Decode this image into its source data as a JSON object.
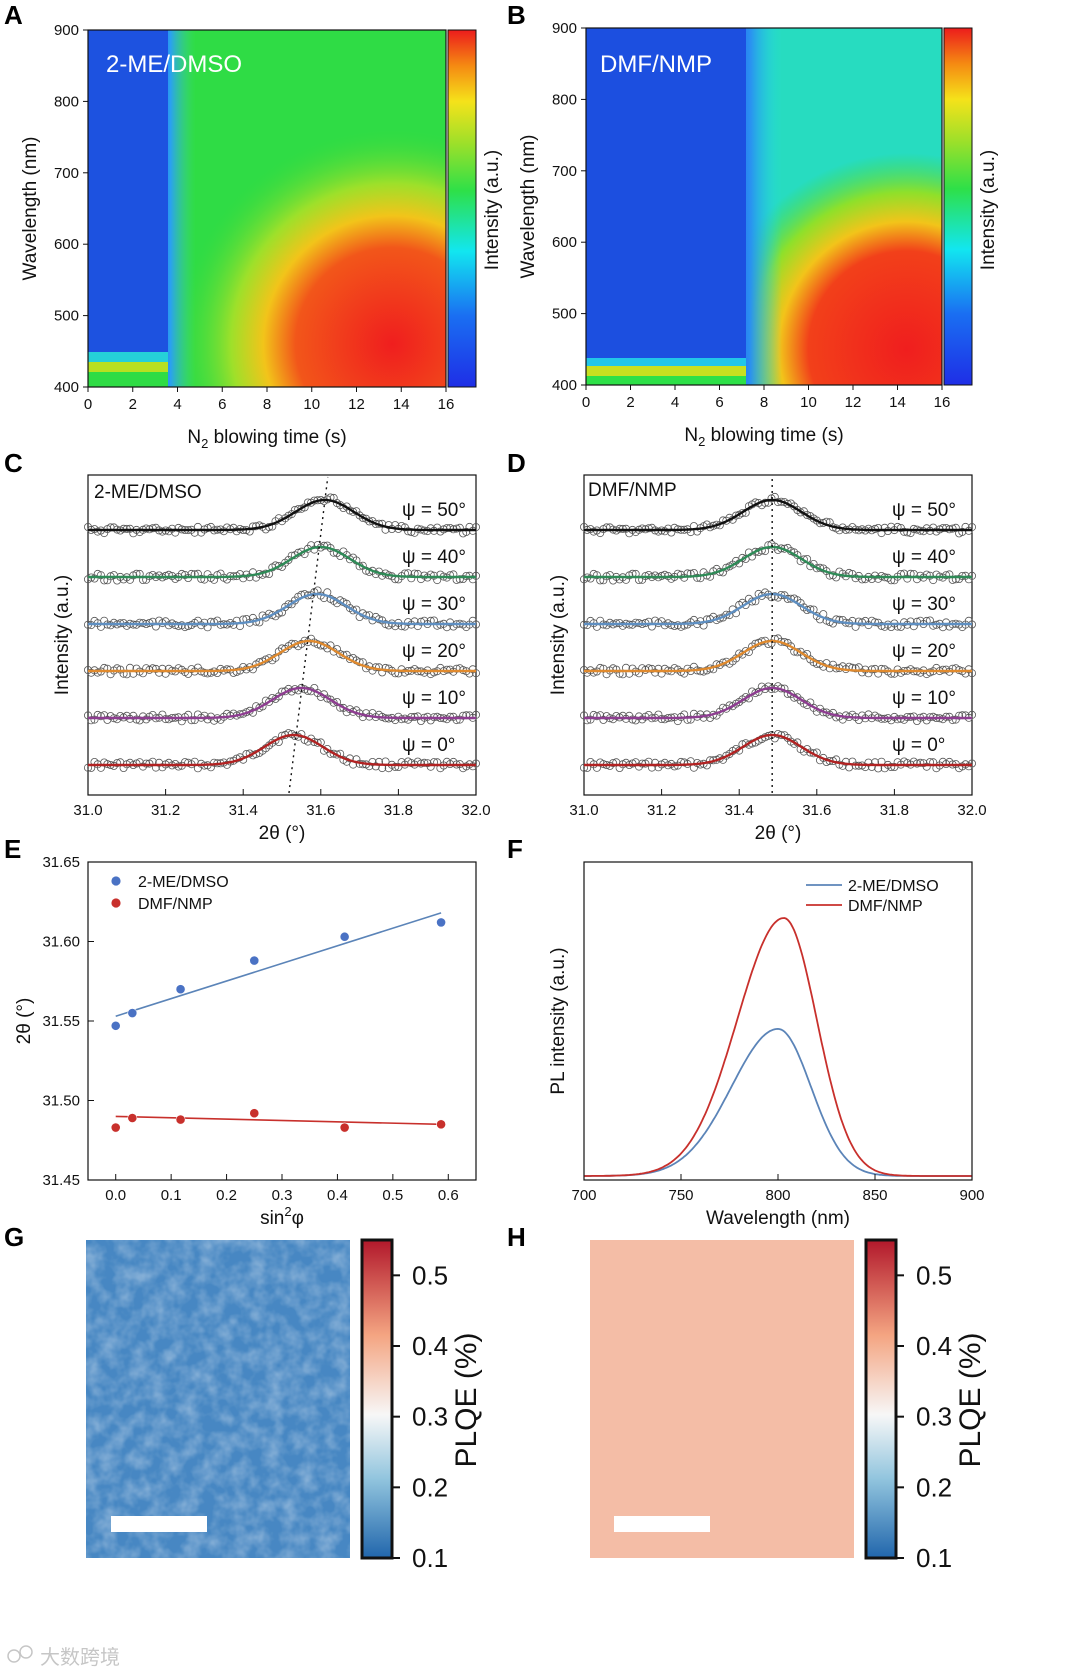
{
  "panels": {
    "A": {
      "letter": "A",
      "title": "2-ME/DMSO"
    },
    "B": {
      "letter": "B",
      "title": "DMF/NMP"
    },
    "C": {
      "letter": "C",
      "title": "2-ME/DMSO"
    },
    "D": {
      "letter": "D",
      "title": "DMF/NMP"
    },
    "E": {
      "letter": "E"
    },
    "F": {
      "letter": "F"
    },
    "G": {
      "letter": "G"
    },
    "H": {
      "letter": "H"
    }
  },
  "watermark": "大数跨境",
  "colors": {
    "me_blue": "#5b84b8",
    "me_point": "#4a72c4",
    "nmp_red": "#c8302c",
    "psi": [
      "#b22222",
      "#8e3d91",
      "#e08a2e",
      "#5e8fc2",
      "#2e8b57",
      "#111111"
    ]
  },
  "chart_data": [
    {
      "id": "A",
      "type": "heatmap",
      "title": "2-ME/DMSO",
      "xlabel": "N₂ blowing time (s)",
      "xlabel_base": "N",
      "xlabel_sub": "2",
      "xlabel_rest": " blowing time (s)",
      "ylabel": "Wavelength (nm)",
      "colorbar_label": "Intensity (a.u.)",
      "xlim": [
        0,
        16
      ],
      "ylim": [
        400,
        900
      ],
      "xticks": [
        "0",
        "2",
        "4",
        "6",
        "8",
        "10",
        "12",
        "14",
        "16"
      ],
      "yticks": [
        "400",
        "500",
        "600",
        "700",
        "800",
        "900"
      ],
      "transition_time_s": 3.5,
      "peak_wavelength_nm": 430
    },
    {
      "id": "B",
      "type": "heatmap",
      "title": "DMF/NMP",
      "xlabel": "N₂ blowing time (s)",
      "xlabel_base": "N",
      "xlabel_sub": "2",
      "xlabel_rest": " blowing time (s)",
      "ylabel": "Wavelength (nm)",
      "colorbar_label": "Intensity (a.u.)",
      "xlim": [
        0,
        16
      ],
      "ylim": [
        400,
        900
      ],
      "xticks": [
        "0",
        "2",
        "4",
        "6",
        "8",
        "10",
        "12",
        "14",
        "16"
      ],
      "yticks": [
        "400",
        "500",
        "600",
        "700",
        "800",
        "900"
      ],
      "transition_time_s": 7.2,
      "peak_wavelength_nm": 420
    },
    {
      "id": "C",
      "type": "line",
      "title": "2-ME/DMSO",
      "xlabel": "2θ (°)",
      "ylabel": "Intensity (a.u.)",
      "xlim": [
        31.0,
        32.0
      ],
      "xticks": [
        "31.0",
        "31.2",
        "31.4",
        "31.6",
        "31.8",
        "32.0"
      ],
      "series": [
        {
          "name": "ψ = 0°",
          "peak": 31.53
        },
        {
          "name": "ψ = 10°",
          "peak": 31.55
        },
        {
          "name": "ψ = 20°",
          "peak": 31.57
        },
        {
          "name": "ψ = 30°",
          "peak": 31.59
        },
        {
          "name": "ψ = 40°",
          "peak": 31.6
        },
        {
          "name": "ψ = 50°",
          "peak": 31.61
        }
      ]
    },
    {
      "id": "D",
      "type": "line",
      "title": "DMF/NMP",
      "xlabel": "2θ (°)",
      "ylabel": "Intensity (a.u.)",
      "xlim": [
        31.0,
        32.0
      ],
      "xticks": [
        "31.0",
        "31.2",
        "31.4",
        "31.6",
        "31.8",
        "32.0"
      ],
      "series": [
        {
          "name": "ψ = 0°",
          "peak": 31.485
        },
        {
          "name": "ψ = 10°",
          "peak": 31.485
        },
        {
          "name": "ψ = 20°",
          "peak": 31.485
        },
        {
          "name": "ψ = 30°",
          "peak": 31.485
        },
        {
          "name": "ψ = 40°",
          "peak": 31.485
        },
        {
          "name": "ψ = 50°",
          "peak": 31.485
        }
      ]
    },
    {
      "id": "E",
      "type": "scatter",
      "xlabel": "sin²φ",
      "xlabel_base": "sin",
      "xlabel_sup": "2",
      "xlabel_rest": "φ",
      "ylabel": "2θ (°)",
      "xlim": [
        -0.05,
        0.65
      ],
      "ylim": [
        31.45,
        31.65
      ],
      "xticks": [
        "0.0",
        "0.1",
        "0.2",
        "0.3",
        "0.4",
        "0.5",
        "0.6"
      ],
      "yticks": [
        "31.45",
        "31.50",
        "31.55",
        "31.60",
        "31.65"
      ],
      "series": [
        {
          "name": "2-ME/DMSO",
          "x": [
            0.0,
            0.03,
            0.117,
            0.25,
            0.413,
            0.587
          ],
          "y": [
            31.547,
            31.555,
            31.57,
            31.588,
            31.603,
            31.612
          ],
          "fit": [
            [
              0.0,
              31.553
            ],
            [
              0.587,
              31.618
            ]
          ]
        },
        {
          "name": "DMF/NMP",
          "x": [
            0.0,
            0.03,
            0.117,
            0.25,
            0.413,
            0.587
          ],
          "y": [
            31.483,
            31.489,
            31.488,
            31.492,
            31.483,
            31.485
          ],
          "fit": [
            [
              0.0,
              31.49
            ],
            [
              0.587,
              31.485
            ]
          ]
        }
      ]
    },
    {
      "id": "F",
      "type": "line",
      "xlabel": "Wavelength (nm)",
      "ylabel": "PL intensity (a.u.)",
      "xlim": [
        700,
        900
      ],
      "xticks": [
        "700",
        "750",
        "800",
        "850",
        "900"
      ],
      "series": [
        {
          "name": "2-ME/DMSO",
          "peak_nm": 800,
          "relative_height": 0.57
        },
        {
          "name": "DMF/NMP",
          "peak_nm": 803,
          "relative_height": 1.0
        }
      ]
    },
    {
      "id": "G",
      "type": "heatmap",
      "colorbar_label": "PLQE (%)",
      "colorbar_range": [
        0.1,
        0.55
      ],
      "colorbar_ticks": [
        "0.1",
        "0.2",
        "0.3",
        "0.4",
        "0.5"
      ],
      "mean_value": 0.17
    },
    {
      "id": "H",
      "type": "heatmap",
      "colorbar_label": "PLQE (%)",
      "colorbar_range": [
        0.1,
        0.55
      ],
      "colorbar_ticks": [
        "0.1",
        "0.2",
        "0.3",
        "0.4",
        "0.5"
      ],
      "mean_value": 0.43
    }
  ]
}
